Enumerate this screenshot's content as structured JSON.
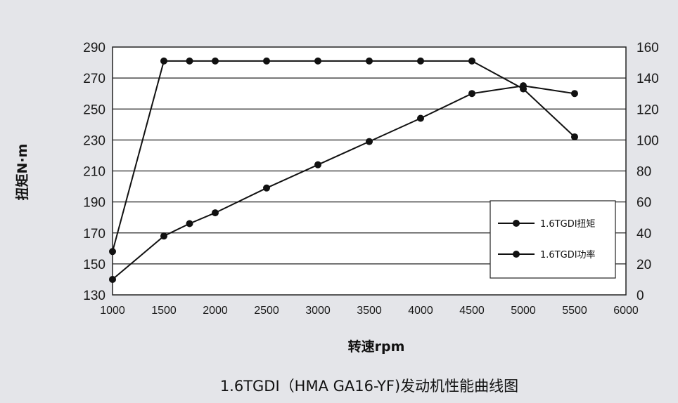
{
  "chart_data": {
    "type": "line",
    "title": "1.6TGDI（HMA GA16-YF)发动机性能曲线图",
    "xlabel": "转速rpm",
    "ylabel": "扭矩N·m",
    "xlim": [
      1000,
      6000
    ],
    "x_ticks": [
      1000,
      1500,
      2000,
      2500,
      3000,
      3500,
      4000,
      4500,
      5000,
      5500,
      6000
    ],
    "ylim": [
      130,
      290
    ],
    "y_ticks": [
      130,
      150,
      170,
      190,
      210,
      230,
      250,
      270,
      290
    ],
    "y2lim": [
      0,
      160
    ],
    "y2_ticks": [
      0,
      20,
      40,
      60,
      80,
      100,
      120,
      140,
      160
    ],
    "grid": true,
    "legend_position": "right",
    "series": [
      {
        "name": "1.6TGDI扭矩",
        "axis": "left",
        "x": [
          1000,
          1500,
          1750,
          2000,
          2500,
          3000,
          3500,
          4000,
          4500,
          5000,
          5500
        ],
        "y": [
          158,
          281,
          281,
          281,
          281,
          281,
          281,
          281,
          281,
          263,
          232
        ]
      },
      {
        "name": "1.6TGDI功率",
        "axis": "right",
        "x": [
          1000,
          1500,
          1750,
          2000,
          2500,
          3000,
          3500,
          4000,
          4500,
          5000,
          5500
        ],
        "y": [
          10,
          38,
          46,
          53,
          69,
          84,
          99,
          114,
          130,
          135,
          130
        ]
      }
    ]
  }
}
